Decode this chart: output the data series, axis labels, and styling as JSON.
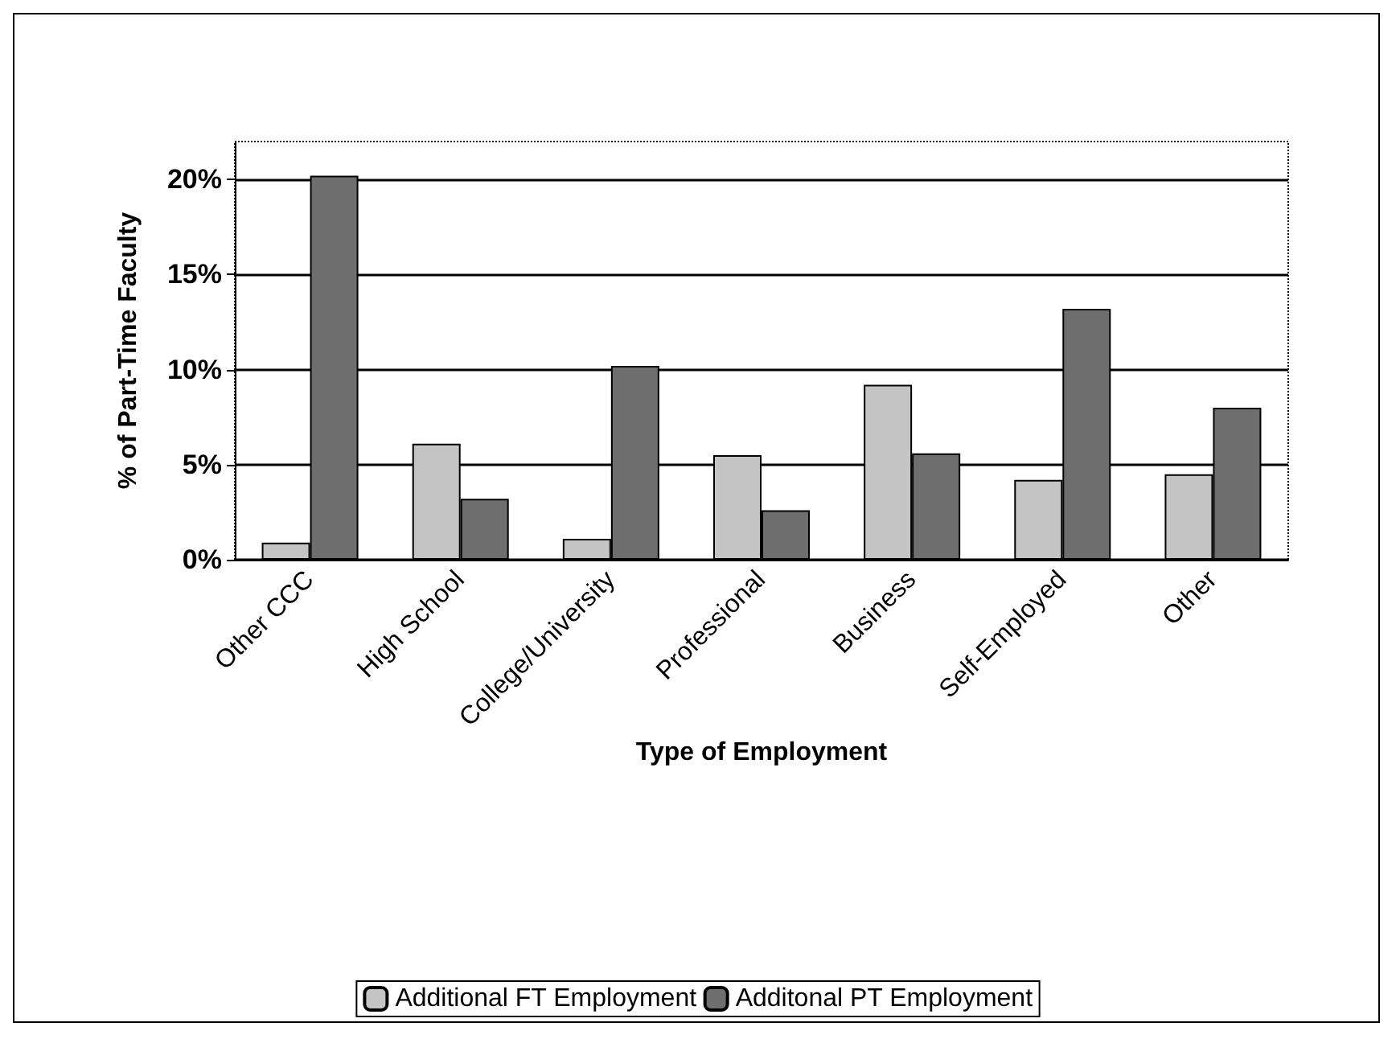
{
  "chart_data": {
    "type": "bar",
    "xlabel": "Type of Employment",
    "ylabel": "% of Part-Time Faculty",
    "categories": [
      "Other CCC",
      "High School",
      "College/University",
      "Professional",
      "Business",
      "Self-Employed",
      "Other"
    ],
    "series": [
      {
        "name": "Additional FT Employment",
        "color": "#c4c4c4",
        "values": [
          0.9,
          6.1,
          1.1,
          5.5,
          9.2,
          4.2,
          4.5
        ]
      },
      {
        "name": "Additonal PT Employment",
        "color": "#6e6e6e",
        "values": [
          20.2,
          3.2,
          10.2,
          2.6,
          5.6,
          13.2,
          8.0
        ]
      }
    ],
    "ylim": [
      0,
      22
    ],
    "yticks": [
      {
        "value": 0,
        "label": "0%"
      },
      {
        "value": 5,
        "label": "5%"
      },
      {
        "value": 10,
        "label": "10%"
      },
      {
        "value": 15,
        "label": "15%"
      },
      {
        "value": 20,
        "label": "20%"
      }
    ],
    "grid": "y",
    "legend": "bottom"
  }
}
